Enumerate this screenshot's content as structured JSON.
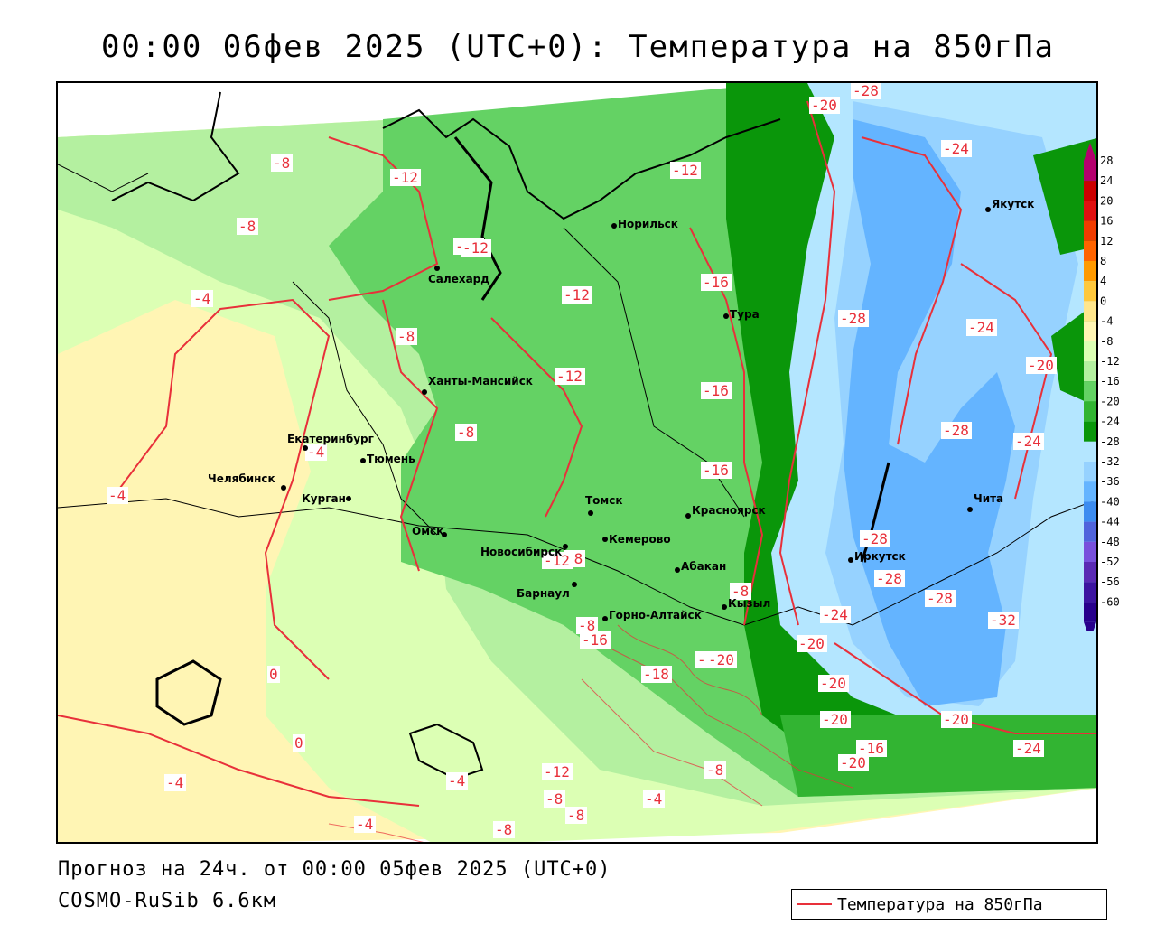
{
  "title": "00:00 06фев 2025 (UTC+0): Температура на 850гПа",
  "footer": {
    "forecast": "Прогноз на 24ч. от 00:00 05фев 2025 (UTC+0)",
    "model": "COSMO-RuSib 6.6км"
  },
  "legend": {
    "label": "Температура на 850гПа",
    "line_color": "#e8303a"
  },
  "colorbar": {
    "ticks": [
      "28",
      "24",
      "20",
      "16",
      "12",
      "8",
      "4",
      "0",
      "-4",
      "-8",
      "-12",
      "-16",
      "-20",
      "-24",
      "-28",
      "-32",
      "-36",
      "-40",
      "-44",
      "-48",
      "-52",
      "-56",
      "-60"
    ],
    "colors": [
      "#b4006e",
      "#cc0000",
      "#e01010",
      "#f03c00",
      "#ff6400",
      "#ff9a00",
      "#ffc83c",
      "#ffe68c",
      "#fff5b4",
      "#dcffb4",
      "#b4f0a0",
      "#64d264",
      "#32b432",
      "#0a960a",
      "#b4e6ff",
      "#96d2ff",
      "#64b4ff",
      "#3c8cf0",
      "#5064dc",
      "#7850dc",
      "#5a2ab4",
      "#3c14a0",
      "#28008c"
    ]
  },
  "cities": [
    {
      "name": "Салехард"
    },
    {
      "name": "Норильск"
    },
    {
      "name": "Тура"
    },
    {
      "name": "Якутск"
    },
    {
      "name": "Ханты-Мансийск"
    },
    {
      "name": "Екатеринбург"
    },
    {
      "name": "Тюмень"
    },
    {
      "name": "Челябинск"
    },
    {
      "name": "Курган"
    },
    {
      "name": "Омск"
    },
    {
      "name": "Новосибирск"
    },
    {
      "name": "Томск"
    },
    {
      "name": "Кемерово"
    },
    {
      "name": "Красноярск"
    },
    {
      "name": "Абакан"
    },
    {
      "name": "Барнаул"
    },
    {
      "name": "Горно-Алтайск"
    },
    {
      "name": "Кызыл"
    },
    {
      "name": "Иркутск"
    },
    {
      "name": "Чита"
    }
  ],
  "isotherm_labels": [
    "-8",
    "-12",
    "-12",
    "-8",
    "-12",
    "-12",
    "-12",
    "-16",
    "-16",
    "-16",
    "-20",
    "-28",
    "-24",
    "-4",
    "-8",
    "-8",
    "-12",
    "-4",
    "-4",
    "-8",
    "-28",
    "-28",
    "-24",
    "-20",
    "-24",
    "-28",
    "-28",
    "-28",
    "-32",
    "-24",
    "-20",
    "-20",
    "-20",
    "-20",
    "-16",
    "-16",
    "-18",
    "-12",
    "-8",
    "-4",
    "0",
    "0",
    "-4",
    "-12",
    "-8",
    "-4",
    "-8",
    "-4",
    "-8",
    "-8",
    "-20",
    "-24",
    "-20",
    "-16",
    "-8"
  ]
}
